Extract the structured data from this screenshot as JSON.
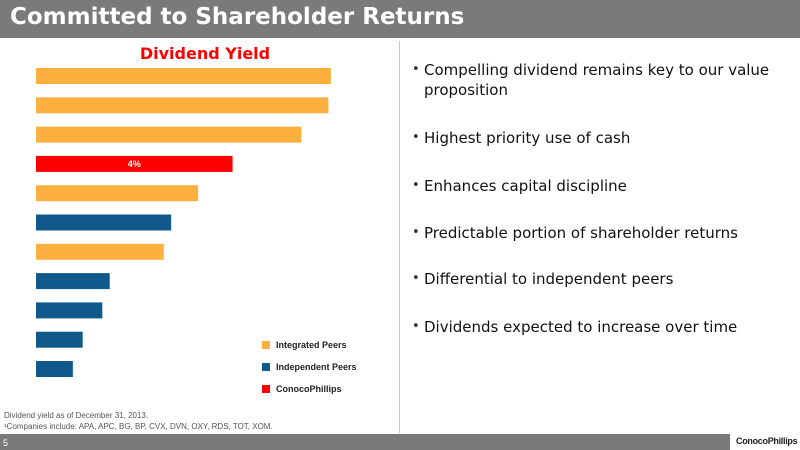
{
  "slide": {
    "title": "Committed to Shareholder Returns",
    "page_number": "5",
    "logo": "ConocoPhillips"
  },
  "colors": {
    "integrated": "#fbb040",
    "independent": "#0f5a8a",
    "conocophillips": "#ff0000",
    "title_bar": "#7a7a7a"
  },
  "chart_data": {
    "type": "bar",
    "orientation": "horizontal",
    "title": "Dividend Yield",
    "xlabel": "",
    "ylabel": "",
    "xlim": [
      0,
      7
    ],
    "grid": false,
    "legend_position": "bottom-right",
    "bars": [
      {
        "group": "Integrated Peers",
        "value": 6.0
      },
      {
        "group": "Integrated Peers",
        "value": 5.95
      },
      {
        "group": "Integrated Peers",
        "value": 5.4
      },
      {
        "group": "ConocoPhillips",
        "value": 4.0,
        "label": "4%"
      },
      {
        "group": "Integrated Peers",
        "value": 3.3
      },
      {
        "group": "Independent Peers",
        "value": 2.75
      },
      {
        "group": "Integrated Peers",
        "value": 2.6
      },
      {
        "group": "Independent Peers",
        "value": 1.5
      },
      {
        "group": "Independent Peers",
        "value": 1.35
      },
      {
        "group": "Independent Peers",
        "value": 0.95
      },
      {
        "group": "Independent Peers",
        "value": 0.75
      }
    ],
    "legend": [
      "Integrated Peers",
      "Independent Peers",
      "ConocoPhillips"
    ]
  },
  "bullets": [
    "Compelling dividend remains key to our value proposition",
    "Highest priority use of cash",
    "Enhances capital discipline",
    "Predictable portion of shareholder returns",
    "Differential to independent peers",
    "Dividends expected to increase over time"
  ],
  "footnotes": [
    "Dividend yield as of December 31, 2013.",
    "¹Companies include: APA, APC, BG, BP, CVX, DVN, OXY, RDS, TOT, XOM."
  ]
}
